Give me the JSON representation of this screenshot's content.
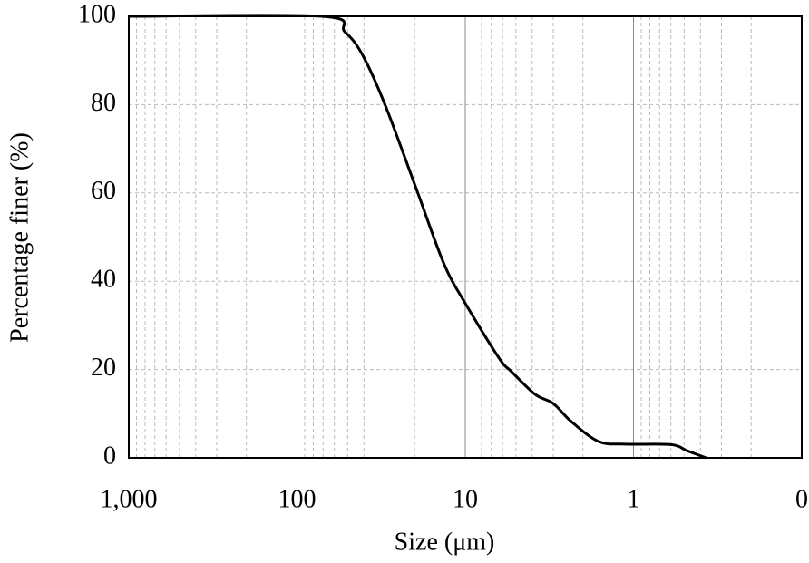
{
  "chart_data": {
    "type": "line",
    "xlabel": "Size (μm)",
    "ylabel": "Percentage finer (%)",
    "x": [
      1000,
      71,
      52,
      41,
      30,
      19.4,
      13.4,
      10,
      6.3,
      5.3,
      3.85,
      3.0,
      2.34,
      1.61,
      1.12,
      0.6,
      0.48,
      0.37
    ],
    "series": [
      {
        "color": "#000000",
        "values": [
          100,
          100,
          96.5,
          91.4,
          80,
          60.6,
          44,
          35,
          22.6,
          19.5,
          14.4,
          12.3,
          8.2,
          3.7,
          3.1,
          3,
          1.6,
          0
        ]
      }
    ],
    "xlim": [
      1000,
      0.1
    ],
    "xscale": "log",
    "xticks": [
      {
        "value": 1000,
        "label": "1,000"
      },
      100,
      10,
      1,
      {
        "value": 0.1,
        "label": "0"
      }
    ],
    "ylim": [
      0,
      100
    ],
    "yticks": [
      0,
      20,
      40,
      60,
      80,
      100
    ],
    "grid": true,
    "minor_grid": true
  }
}
